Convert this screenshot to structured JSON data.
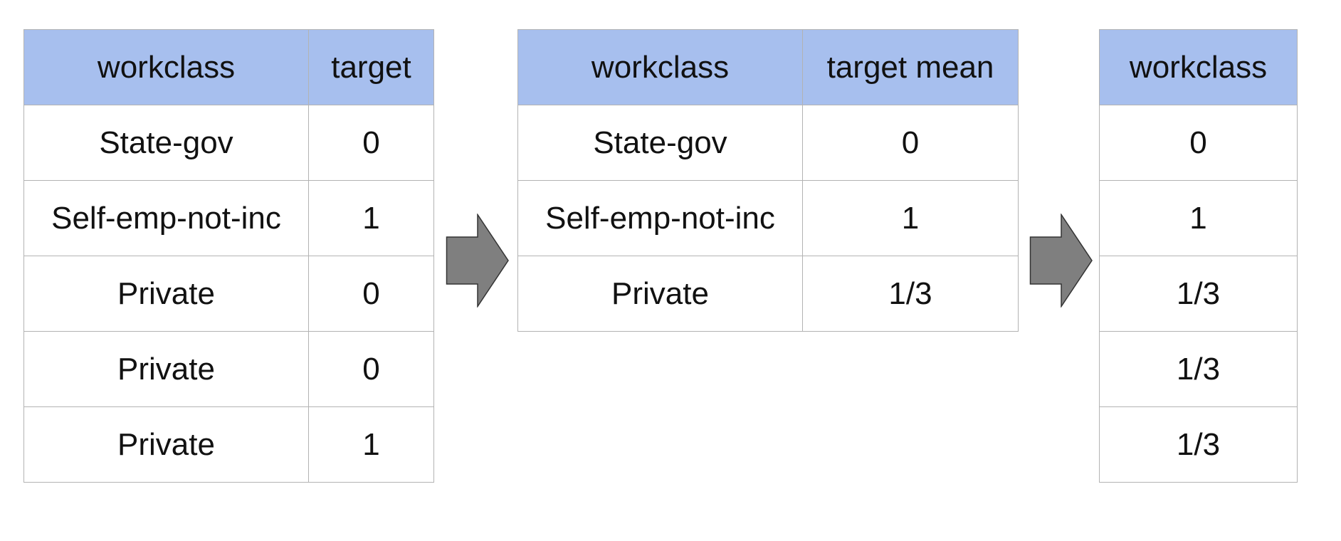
{
  "input_table": {
    "headers": [
      "workclass",
      "target"
    ],
    "rows": [
      [
        "State-gov",
        "0"
      ],
      [
        "Self-emp-not-inc",
        "1"
      ],
      [
        "Private",
        "0"
      ],
      [
        "Private",
        "0"
      ],
      [
        "Private",
        "1"
      ]
    ]
  },
  "mapping_table": {
    "headers": [
      "workclass",
      "target mean"
    ],
    "rows": [
      [
        "State-gov",
        "0"
      ],
      [
        "Self-emp-not-inc",
        "1"
      ],
      [
        "Private",
        "1/3"
      ]
    ]
  },
  "output_table": {
    "headers": [
      "workclass"
    ],
    "rows": [
      [
        "0"
      ],
      [
        "1"
      ],
      [
        "1/3"
      ],
      [
        "1/3"
      ],
      [
        "1/3"
      ]
    ]
  },
  "colors": {
    "header_fill": "#a7bfee",
    "grid_line": "#b3b3b3",
    "arrow_fill": "#7f7f7f",
    "arrow_stroke": "#333333"
  },
  "icons": {
    "arrow_1": "right-arrow-icon",
    "arrow_2": "right-arrow-icon"
  }
}
